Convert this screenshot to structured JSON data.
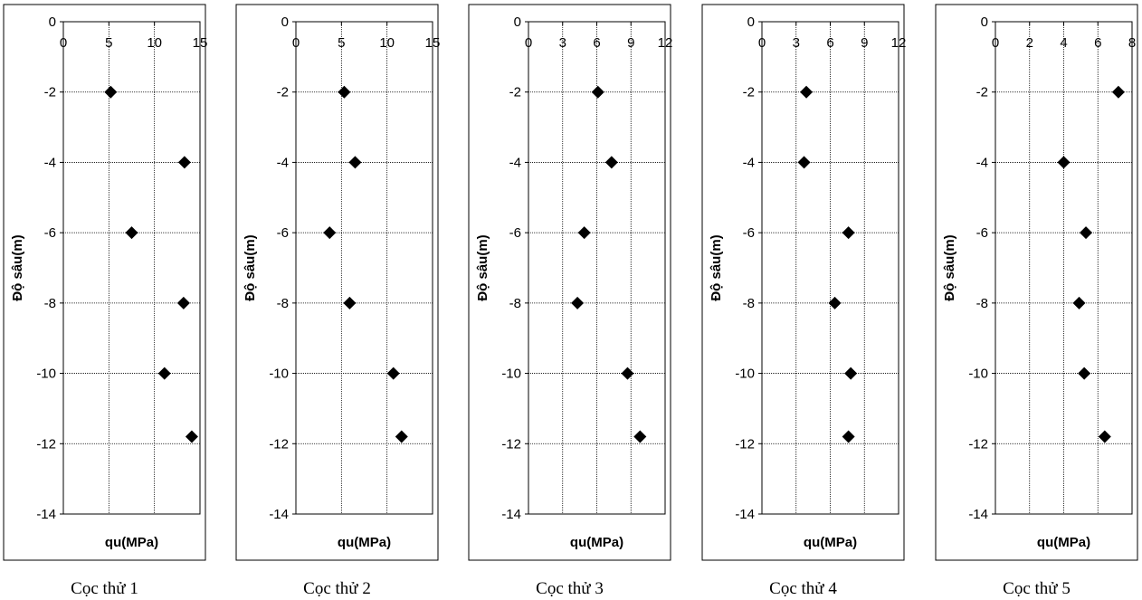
{
  "chart_data": [
    {
      "type": "scatter",
      "caption": "Cọc thử 1",
      "xlabel": "qu(MPa)",
      "ylabel": "Độ sâu(m)",
      "xlim": [
        0,
        15
      ],
      "xticks": [
        0,
        5,
        10,
        15
      ],
      "ylim": [
        -14,
        0
      ],
      "yticks": [
        0,
        -2,
        -4,
        -6,
        -8,
        -10,
        -12,
        -14
      ],
      "grid": true,
      "marker": "diamond",
      "points": [
        {
          "x": 5.2,
          "y": -2
        },
        {
          "x": 13.3,
          "y": -4
        },
        {
          "x": 7.5,
          "y": -6
        },
        {
          "x": 13.2,
          "y": -8
        },
        {
          "x": 11.1,
          "y": -10
        },
        {
          "x": 14.1,
          "y": -11.8
        }
      ]
    },
    {
      "type": "scatter",
      "caption": "Cọc thử 2",
      "xlabel": "qu(MPa)",
      "ylabel": "Độ sâu(m)",
      "xlim": [
        0,
        15
      ],
      "xticks": [
        0,
        5,
        10,
        15
      ],
      "ylim": [
        -14,
        0
      ],
      "yticks": [
        0,
        -2,
        -4,
        -6,
        -8,
        -10,
        -12,
        -14
      ],
      "grid": true,
      "marker": "diamond",
      "points": [
        {
          "x": 5.3,
          "y": -2
        },
        {
          "x": 6.5,
          "y": -4
        },
        {
          "x": 3.7,
          "y": -6
        },
        {
          "x": 5.9,
          "y": -8
        },
        {
          "x": 10.7,
          "y": -10
        },
        {
          "x": 11.6,
          "y": -11.8
        }
      ]
    },
    {
      "type": "scatter",
      "caption": "Cọc thử 3",
      "xlabel": "qu(MPa)",
      "ylabel": "Độ sâu(m)",
      "xlim": [
        0,
        12
      ],
      "xticks": [
        0,
        3,
        6,
        9,
        12
      ],
      "ylim": [
        -14,
        0
      ],
      "yticks": [
        0,
        -2,
        -4,
        -6,
        -8,
        -10,
        -12,
        -14
      ],
      "grid": true,
      "marker": "diamond",
      "points": [
        {
          "x": 6.1,
          "y": -2
        },
        {
          "x": 7.3,
          "y": -4
        },
        {
          "x": 4.9,
          "y": -6
        },
        {
          "x": 4.3,
          "y": -8
        },
        {
          "x": 8.7,
          "y": -10
        },
        {
          "x": 9.8,
          "y": -11.8
        }
      ]
    },
    {
      "type": "scatter",
      "caption": "Cọc thử 4",
      "xlabel": "qu(MPa)",
      "ylabel": "Độ sâu(m)",
      "xlim": [
        0,
        12
      ],
      "xticks": [
        0,
        3,
        6,
        9,
        12
      ],
      "ylim": [
        -14,
        0
      ],
      "yticks": [
        0,
        -2,
        -4,
        -6,
        -8,
        -10,
        -12,
        -14
      ],
      "grid": true,
      "marker": "diamond",
      "points": [
        {
          "x": 3.9,
          "y": -2
        },
        {
          "x": 3.7,
          "y": -4
        },
        {
          "x": 7.6,
          "y": -6
        },
        {
          "x": 6.4,
          "y": -8
        },
        {
          "x": 7.8,
          "y": -10
        },
        {
          "x": 7.6,
          "y": -11.8
        }
      ]
    },
    {
      "type": "scatter",
      "caption": "Cọc thử 5",
      "xlabel": "qu(MPa)",
      "ylabel": "Độ sâu(m)",
      "xlim": [
        0,
        8
      ],
      "xticks": [
        0,
        2,
        4,
        6,
        8
      ],
      "ylim": [
        -14,
        0
      ],
      "yticks": [
        0,
        -2,
        -4,
        -6,
        -8,
        -10,
        -12,
        -14
      ],
      "grid": true,
      "marker": "diamond",
      "points": [
        {
          "x": 7.2,
          "y": -2
        },
        {
          "x": 4.0,
          "y": -4
        },
        {
          "x": 5.3,
          "y": -6
        },
        {
          "x": 4.9,
          "y": -8
        },
        {
          "x": 5.2,
          "y": -10
        },
        {
          "x": 6.4,
          "y": -11.8
        }
      ]
    }
  ]
}
